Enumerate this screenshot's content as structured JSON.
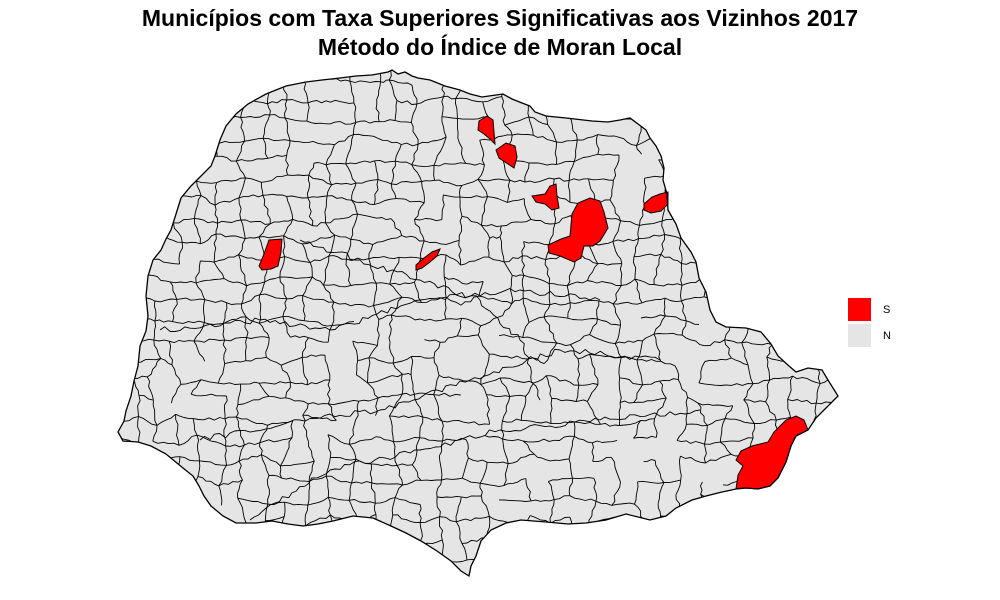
{
  "title": {
    "line1": "Municípios com Taxa Superiores Significativas aos Vizinhos 2017",
    "line2": "Método do Índice de Moran Local"
  },
  "legend": {
    "items": [
      {
        "label": "S",
        "color": "#ff0000"
      },
      {
        "label": "N",
        "color": "#e5e5e5"
      }
    ]
  },
  "map": {
    "region": "Paraná",
    "fill_default": "#e5e5e5",
    "fill_highlight": "#ff0000",
    "border_color": "#000000",
    "highlighted_category": "S",
    "default_category": "N"
  }
}
